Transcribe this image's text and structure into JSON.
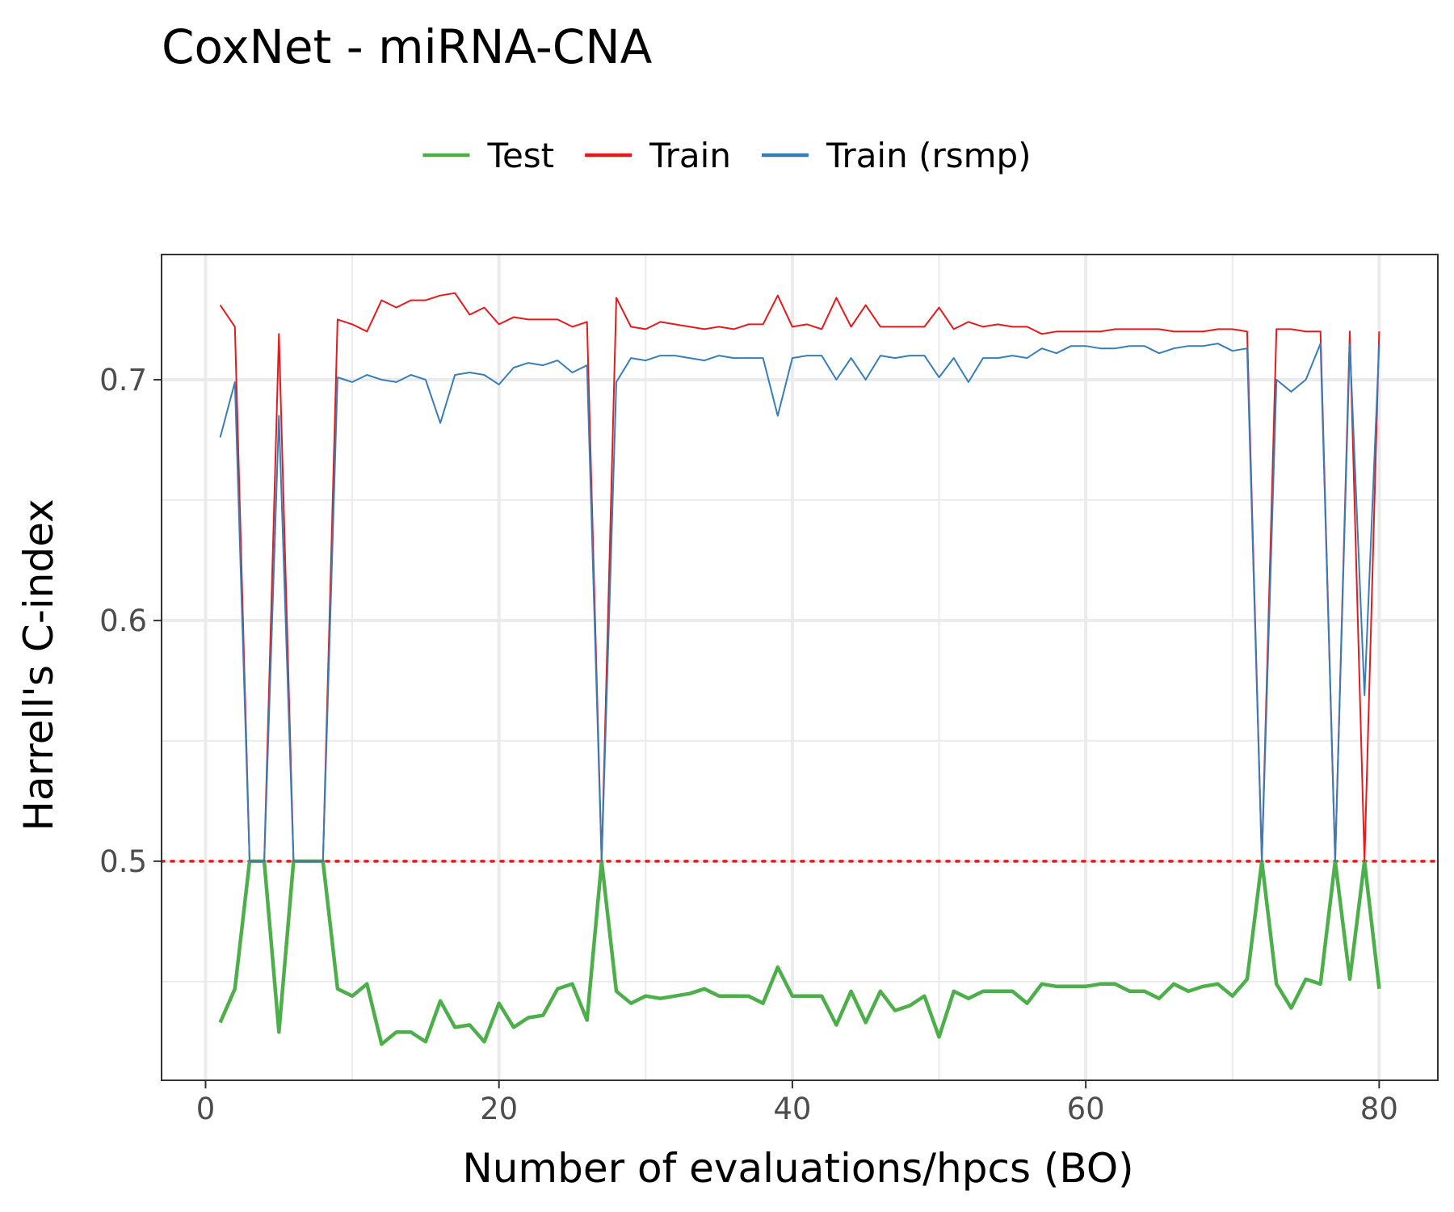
{
  "chart_data": {
    "type": "line",
    "title": "CoxNet - miRNA-CNA",
    "xlabel": "Number of evaluations/hpcs (BO)",
    "ylabel": "Harrell's C-index",
    "xlim": [
      -3,
      84
    ],
    "ylim": [
      0.409,
      0.752
    ],
    "x_ticks": [
      0,
      20,
      40,
      60,
      80
    ],
    "y_ticks": [
      0.5,
      0.6,
      0.7
    ],
    "x_tick_labels": [
      "0",
      "20",
      "40",
      "60",
      "80"
    ],
    "y_tick_labels": [
      "0.5",
      "0.6",
      "0.7"
    ],
    "grid": true,
    "legend_position": "top",
    "reference_line": {
      "y": 0.5,
      "style": "dotted",
      "color": "#e41a1c"
    },
    "x": [
      1,
      2,
      3,
      4,
      5,
      6,
      7,
      8,
      9,
      10,
      11,
      12,
      13,
      14,
      15,
      16,
      17,
      18,
      19,
      20,
      21,
      22,
      23,
      24,
      25,
      26,
      27,
      28,
      29,
      30,
      31,
      32,
      33,
      34,
      35,
      36,
      37,
      38,
      39,
      40,
      41,
      42,
      43,
      44,
      45,
      46,
      47,
      48,
      49,
      50,
      51,
      52,
      53,
      54,
      55,
      56,
      57,
      58,
      59,
      60,
      61,
      62,
      63,
      64,
      65,
      66,
      67,
      68,
      69,
      70,
      71,
      72,
      73,
      74,
      75,
      76,
      77,
      78,
      79,
      80
    ],
    "series": [
      {
        "name": "Test",
        "color": "#4daf4a",
        "values": [
          0.433,
          0.447,
          0.5,
          0.5,
          0.429,
          0.5,
          0.5,
          0.5,
          0.447,
          0.444,
          0.449,
          0.424,
          0.429,
          0.429,
          0.425,
          0.442,
          0.431,
          0.432,
          0.425,
          0.441,
          0.431,
          0.435,
          0.436,
          0.447,
          0.449,
          0.434,
          0.5,
          0.446,
          0.441,
          0.444,
          0.443,
          0.444,
          0.445,
          0.447,
          0.444,
          0.444,
          0.444,
          0.441,
          0.456,
          0.444,
          0.444,
          0.444,
          0.432,
          0.446,
          0.433,
          0.446,
          0.438,
          0.44,
          0.444,
          0.427,
          0.446,
          0.443,
          0.446,
          0.446,
          0.446,
          0.441,
          0.449,
          0.448,
          0.448,
          0.448,
          0.449,
          0.449,
          0.446,
          0.446,
          0.443,
          0.449,
          0.446,
          0.448,
          0.449,
          0.444,
          0.451,
          0.5,
          0.449,
          0.439,
          0.451,
          0.449,
          0.5,
          0.451,
          0.5,
          0.447
        ]
      },
      {
        "name": "Train",
        "color": "#e41a1c",
        "values": [
          0.731,
          0.722,
          0.5,
          0.5,
          0.719,
          0.5,
          0.5,
          0.5,
          0.725,
          0.723,
          0.72,
          0.733,
          0.73,
          0.733,
          0.733,
          0.735,
          0.736,
          0.727,
          0.73,
          0.723,
          0.726,
          0.725,
          0.725,
          0.725,
          0.722,
          0.724,
          0.5,
          0.734,
          0.722,
          0.721,
          0.724,
          0.723,
          0.722,
          0.721,
          0.722,
          0.721,
          0.723,
          0.723,
          0.735,
          0.722,
          0.723,
          0.721,
          0.734,
          0.722,
          0.731,
          0.722,
          0.722,
          0.722,
          0.722,
          0.73,
          0.721,
          0.724,
          0.722,
          0.723,
          0.722,
          0.722,
          0.719,
          0.72,
          0.72,
          0.72,
          0.72,
          0.721,
          0.721,
          0.721,
          0.721,
          0.72,
          0.72,
          0.72,
          0.721,
          0.721,
          0.72,
          0.5,
          0.721,
          0.721,
          0.72,
          0.72,
          0.5,
          0.72,
          0.5,
          0.72
        ]
      },
      {
        "name": "Train (rsmp)",
        "color": "#377eb8",
        "values": [
          0.676,
          0.699,
          0.5,
          0.5,
          0.685,
          0.5,
          0.5,
          0.5,
          0.701,
          0.699,
          0.702,
          0.7,
          0.699,
          0.702,
          0.7,
          0.682,
          0.702,
          0.703,
          0.702,
          0.698,
          0.705,
          0.707,
          0.706,
          0.708,
          0.703,
          0.706,
          0.5,
          0.699,
          0.709,
          0.708,
          0.71,
          0.71,
          0.709,
          0.708,
          0.71,
          0.709,
          0.709,
          0.709,
          0.685,
          0.709,
          0.71,
          0.71,
          0.7,
          0.709,
          0.7,
          0.71,
          0.709,
          0.71,
          0.71,
          0.701,
          0.709,
          0.699,
          0.709,
          0.709,
          0.71,
          0.709,
          0.713,
          0.711,
          0.714,
          0.714,
          0.713,
          0.713,
          0.714,
          0.714,
          0.711,
          0.713,
          0.714,
          0.714,
          0.715,
          0.712,
          0.713,
          0.5,
          0.7,
          0.695,
          0.7,
          0.715,
          0.5,
          0.715,
          0.569,
          0.715
        ]
      }
    ]
  }
}
